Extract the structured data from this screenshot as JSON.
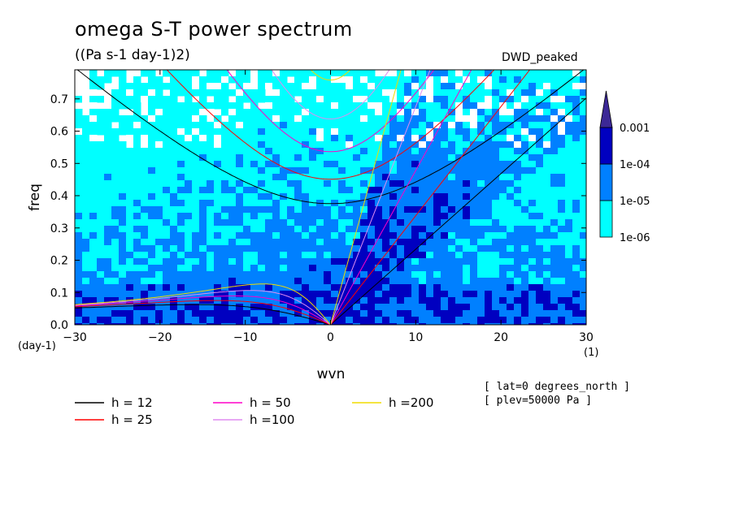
{
  "title": "omega S-T power spectrum",
  "subtitle": "((Pa s-1 day-1)2)",
  "model_tag": "DWD_peaked",
  "info": [
    "[ lat=0 degrees_north ]",
    "[ plev=50000 Pa ]"
  ],
  "colors": {
    "levels": [
      "#00ffff",
      "#0080ff",
      "#0000c0",
      "#000080",
      "#3c2896"
    ],
    "curves": {
      "h12": "#000000",
      "h25": "#ff0000",
      "h50": "#ff00c8",
      "h100": "#e08cf0",
      "h200": "#f0dc00"
    }
  },
  "chart_data": {
    "type": "heatmap",
    "title": "omega S-T power spectrum",
    "subtitle": "((Pa s-1 day-1)2)",
    "xlabel": "wvn",
    "ylabel": "freq",
    "x_unit": "(1)",
    "y_unit": "(day-1)",
    "xlim": [
      -30,
      30
    ],
    "ylim": [
      0,
      0.79
    ],
    "xticks": [
      "-30",
      "-20",
      "-10",
      "0",
      "10",
      "20",
      "30"
    ],
    "yticks": [
      "0.0",
      "0.1",
      "0.2",
      "0.3",
      "0.4",
      "0.5",
      "0.6",
      "0.7"
    ],
    "colorbar": {
      "levels": [
        "1e-06",
        "1e-05",
        "1e-04",
        "0.001"
      ],
      "extend": "max"
    },
    "dispersion_curves": [
      {
        "name": "h = 12",
        "h": 12
      },
      {
        "name": "h = 25",
        "h": 25
      },
      {
        "name": "h = 50",
        "h": 50
      },
      {
        "name": "h =100",
        "h": 100
      },
      {
        "name": "h =200",
        "h": 200
      }
    ]
  }
}
